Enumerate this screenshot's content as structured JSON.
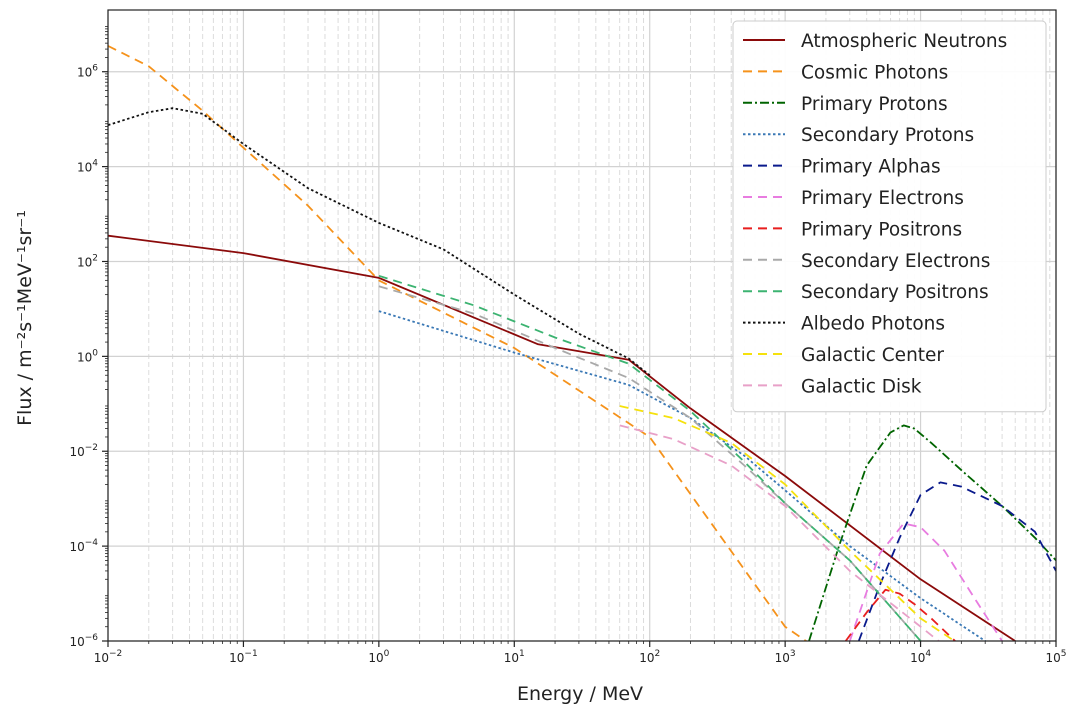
{
  "chart_data": {
    "type": "line",
    "title": "",
    "xlabel": "Energy / MeV",
    "ylabel": "Flux / m⁻²s⁻¹MeV⁻¹sr⁻¹",
    "xscale": "log",
    "yscale": "log",
    "xlim": [
      0.01,
      100000
    ],
    "ylim": [
      1e-06,
      20000000
    ],
    "grid": true,
    "legend_position": "top-right",
    "x_ticks": [
      {
        "base": "10",
        "exp": "−2",
        "value": 0.01
      },
      {
        "base": "10",
        "exp": "−1",
        "value": 0.1
      },
      {
        "base": "10",
        "exp": "0",
        "value": 1
      },
      {
        "base": "10",
        "exp": "1",
        "value": 10
      },
      {
        "base": "10",
        "exp": "2",
        "value": 100
      },
      {
        "base": "10",
        "exp": "3",
        "value": 1000
      },
      {
        "base": "10",
        "exp": "4",
        "value": 10000
      },
      {
        "base": "10",
        "exp": "5",
        "value": 100000
      }
    ],
    "y_ticks": [
      {
        "base": "10",
        "exp": "−6",
        "value": 1e-06
      },
      {
        "base": "10",
        "exp": "−4",
        "value": 0.0001
      },
      {
        "base": "10",
        "exp": "−2",
        "value": 0.01
      },
      {
        "base": "10",
        "exp": "0",
        "value": 1
      },
      {
        "base": "10",
        "exp": "2",
        "value": 100
      },
      {
        "base": "10",
        "exp": "4",
        "value": 10000
      },
      {
        "base": "10",
        "exp": "6",
        "value": 1000000
      }
    ],
    "series": [
      {
        "name": "Atmospheric Neutrons",
        "color": "#8b0a0a",
        "style": "solid",
        "x": [
          0.01,
          0.1,
          1,
          15,
          70,
          200,
          1000,
          10000,
          50000
        ],
        "y": [
          350,
          150,
          45,
          1.8,
          0.85,
          0.08,
          0.003,
          2e-05,
          1e-06
        ]
      },
      {
        "name": "Cosmic Photons",
        "color": "#f5921b",
        "style": "dashed",
        "x": [
          0.01,
          0.02,
          0.03,
          0.05,
          0.1,
          0.3,
          1,
          10,
          100,
          1000,
          1600
        ],
        "y": [
          3500000,
          1300000,
          500000,
          150000,
          25000,
          1500,
          40,
          1.5,
          0.02,
          2e-06,
          8e-07
        ]
      },
      {
        "name": "Primary Protons",
        "color": "#006400",
        "style": "dashdot",
        "x": [
          1500,
          2500,
          4000,
          6000,
          7500,
          9000,
          12000,
          20000,
          40000,
          70000,
          100000
        ],
        "y": [
          1e-06,
          0.0001,
          0.005,
          0.025,
          0.035,
          0.03,
          0.015,
          0.004,
          0.0007,
          0.00015,
          5e-05
        ]
      },
      {
        "name": "Secondary Protons",
        "color": "#3a78b5",
        "style": "dotted",
        "x": [
          1,
          10,
          70,
          200,
          500,
          1000,
          3000,
          10000,
          30000
        ],
        "y": [
          9,
          1.2,
          0.25,
          0.05,
          0.008,
          0.0015,
          0.0001,
          8e-06,
          1e-06
        ]
      },
      {
        "name": "Primary Alphas",
        "color": "#0a1a8c",
        "style": "dashed",
        "x": [
          3500,
          5000,
          7000,
          10000,
          14000,
          20000,
          40000,
          70000,
          100000
        ],
        "y": [
          1e-06,
          1.5e-05,
          0.00015,
          0.0012,
          0.0022,
          0.0018,
          0.0007,
          0.0002,
          3e-05
        ]
      },
      {
        "name": "Primary Electrons",
        "color": "#e87ce0",
        "style": "dashed",
        "x": [
          3000,
          5000,
          7500,
          10000,
          15000,
          25000,
          40000
        ],
        "y": [
          1e-06,
          7e-05,
          0.0003,
          0.00025,
          8e-05,
          8e-06,
          1e-06
        ]
      },
      {
        "name": "Primary Positrons",
        "color": "#e81e1e",
        "style": "dashed",
        "x": [
          2800,
          4000,
          5500,
          7000,
          9000,
          12000,
          18000
        ],
        "y": [
          1e-06,
          4e-06,
          1.2e-05,
          1e-05,
          6e-06,
          3e-06,
          1e-06
        ]
      },
      {
        "name": "Secondary Electrons",
        "color": "#a9a9a9",
        "style": "dashed",
        "x": [
          1,
          5,
          20,
          70,
          200,
          500,
          1000,
          3000,
          10000
        ],
        "y": [
          30,
          8,
          1.5,
          0.35,
          0.05,
          0.005,
          0.0008,
          5e-05,
          1e-06
        ]
      },
      {
        "name": "Secondary Positrons",
        "color": "#3cb371",
        "style": "dashed",
        "x": [
          1,
          5,
          20,
          70,
          200,
          500,
          1000,
          3000,
          10000
        ],
        "y": [
          50,
          12,
          2.5,
          0.7,
          0.07,
          0.006,
          0.0008,
          5e-05,
          1e-06
        ]
      },
      {
        "name": "Albedo Photons",
        "color": "#111111",
        "style": "dotted",
        "x": [
          0.01,
          0.02,
          0.03,
          0.05,
          0.1,
          0.3,
          1,
          3,
          10,
          30,
          70,
          100
        ],
        "y": [
          75000,
          140000,
          170000,
          130000,
          30000,
          3500,
          650,
          180,
          20,
          3,
          0.9,
          0.4
        ]
      },
      {
        "name": "Galactic Center",
        "color": "#f5e10c",
        "style": "dashed",
        "x": [
          60,
          150,
          400,
          1000,
          3000,
          10000,
          20000
        ],
        "y": [
          0.09,
          0.05,
          0.015,
          0.002,
          8e-05,
          3e-06,
          8e-07
        ]
      },
      {
        "name": "Galactic Disk",
        "color": "#e8a0c8",
        "style": "dashed",
        "x": [
          60,
          150,
          400,
          1000,
          3000,
          10000,
          15000
        ],
        "y": [
          0.035,
          0.018,
          0.005,
          0.0007,
          3e-05,
          2e-06,
          8e-07
        ]
      }
    ]
  }
}
